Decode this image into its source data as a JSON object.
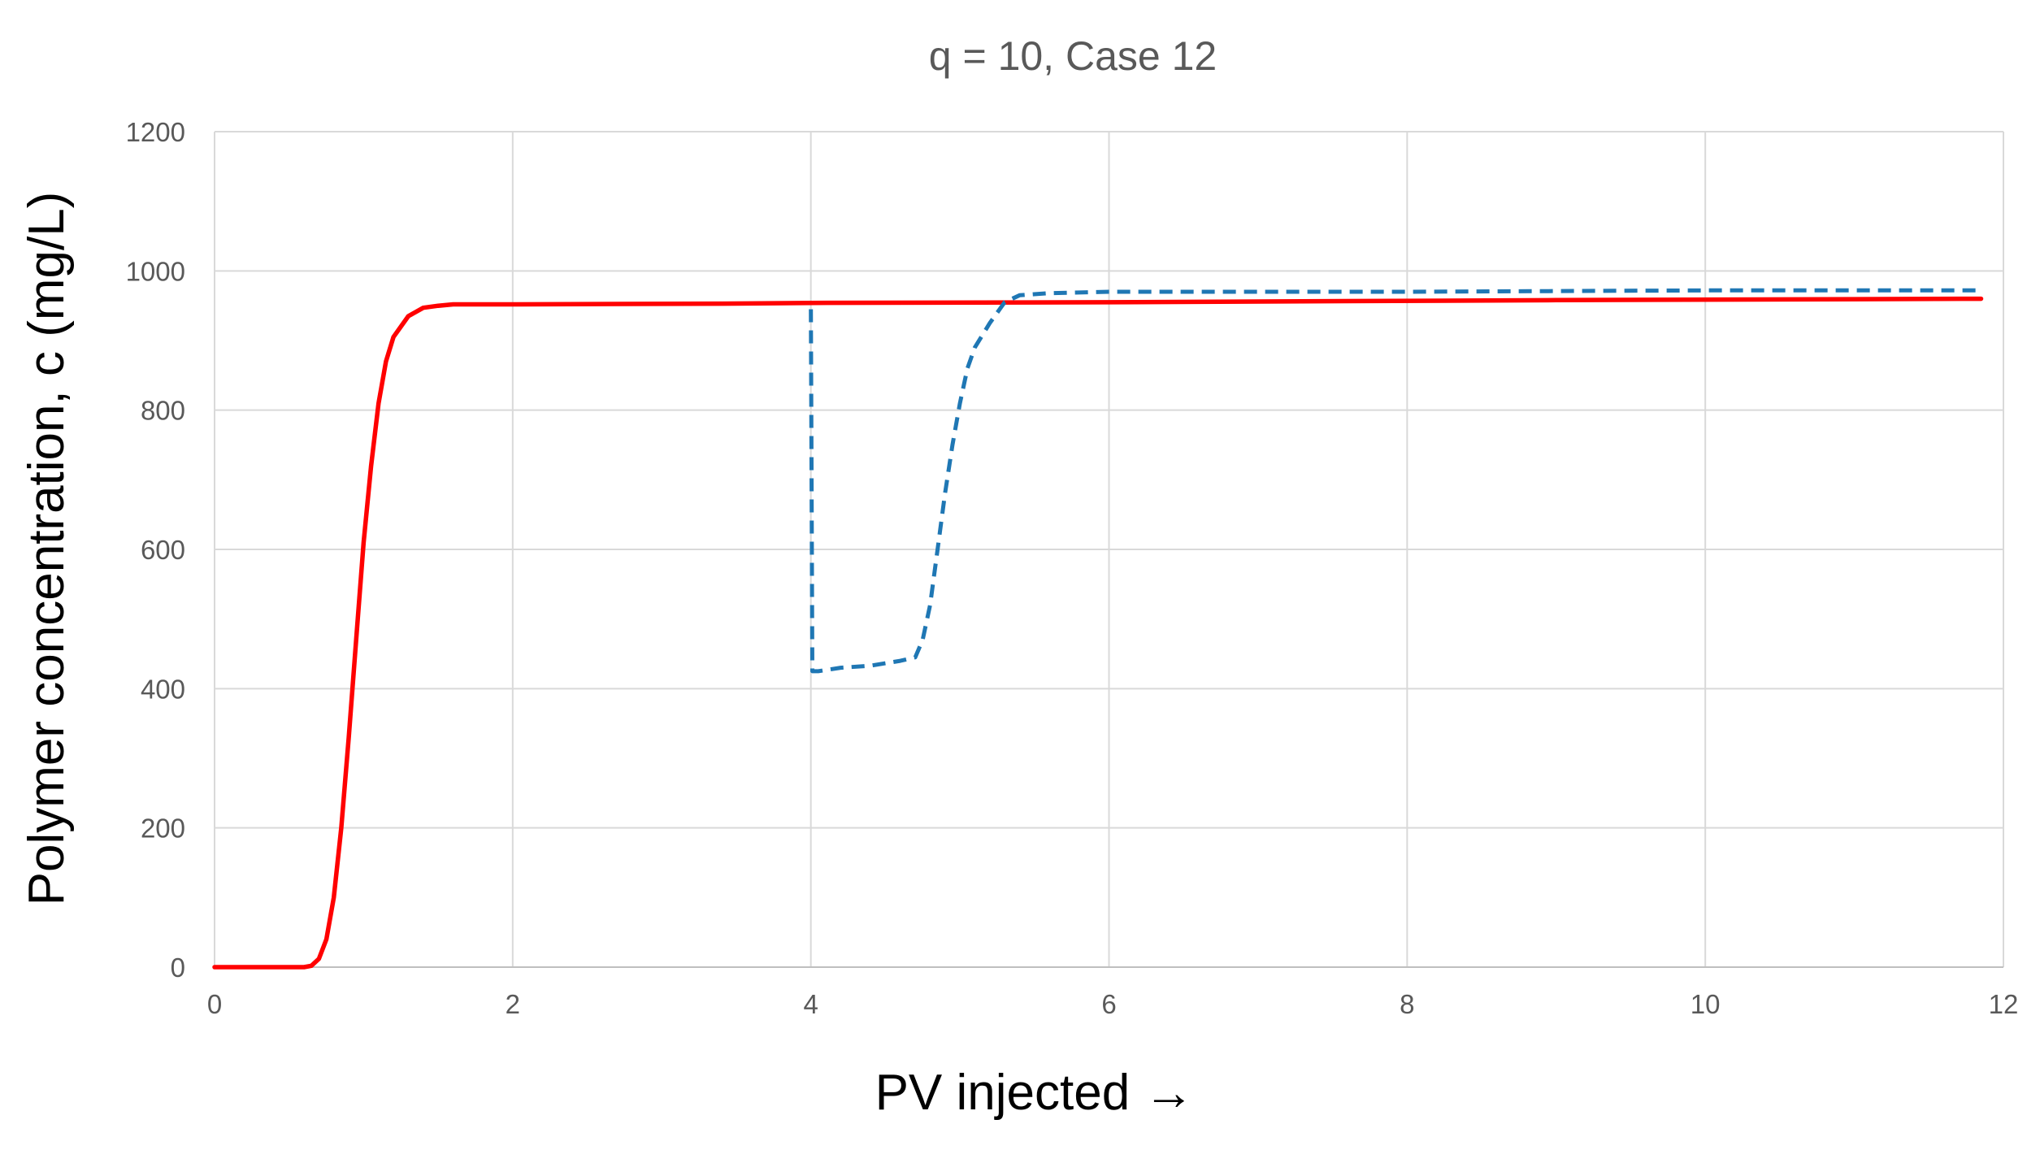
{
  "chart_data": {
    "type": "line",
    "title": "q = 10,  Case 12",
    "xlabel": "PV injected →",
    "ylabel": "Polymer concentration, c (mg/L)",
    "xlim": [
      0,
      12
    ],
    "ylim": [
      0,
      1200
    ],
    "xticks": [
      0,
      2,
      4,
      6,
      8,
      10,
      12
    ],
    "yticks": [
      0,
      200,
      400,
      600,
      800,
      1000,
      1200
    ],
    "grid": true,
    "legend": "none",
    "series": [
      {
        "color": "#ff0000",
        "style": "solid",
        "x": [
          0,
          0.6,
          0.65,
          0.7,
          0.75,
          0.8,
          0.85,
          0.9,
          0.95,
          1.0,
          1.05,
          1.1,
          1.15,
          1.2,
          1.3,
          1.4,
          1.5,
          1.6,
          2.0,
          3.4,
          4.0,
          6.0,
          9.0,
          11.85
        ],
        "y": [
          0,
          0,
          2,
          12,
          40,
          100,
          200,
          330,
          470,
          610,
          720,
          810,
          870,
          905,
          935,
          947,
          950,
          952,
          952,
          953,
          954,
          955,
          958,
          960
        ]
      },
      {
        "color": "#1f77b4",
        "style": "dashed",
        "x": [
          4.0,
          4.01,
          4.05,
          4.2,
          4.4,
          4.6,
          4.7,
          4.75,
          4.8,
          4.85,
          4.9,
          4.95,
          5.0,
          5.05,
          5.1,
          5.2,
          5.3,
          5.4,
          5.6,
          6.0,
          8.0,
          10.0,
          11.85
        ],
        "y": [
          945,
          425,
          425,
          430,
          433,
          440,
          445,
          470,
          520,
          600,
          680,
          750,
          810,
          860,
          890,
          925,
          955,
          965,
          968,
          970,
          970,
          972,
          972
        ]
      }
    ]
  }
}
